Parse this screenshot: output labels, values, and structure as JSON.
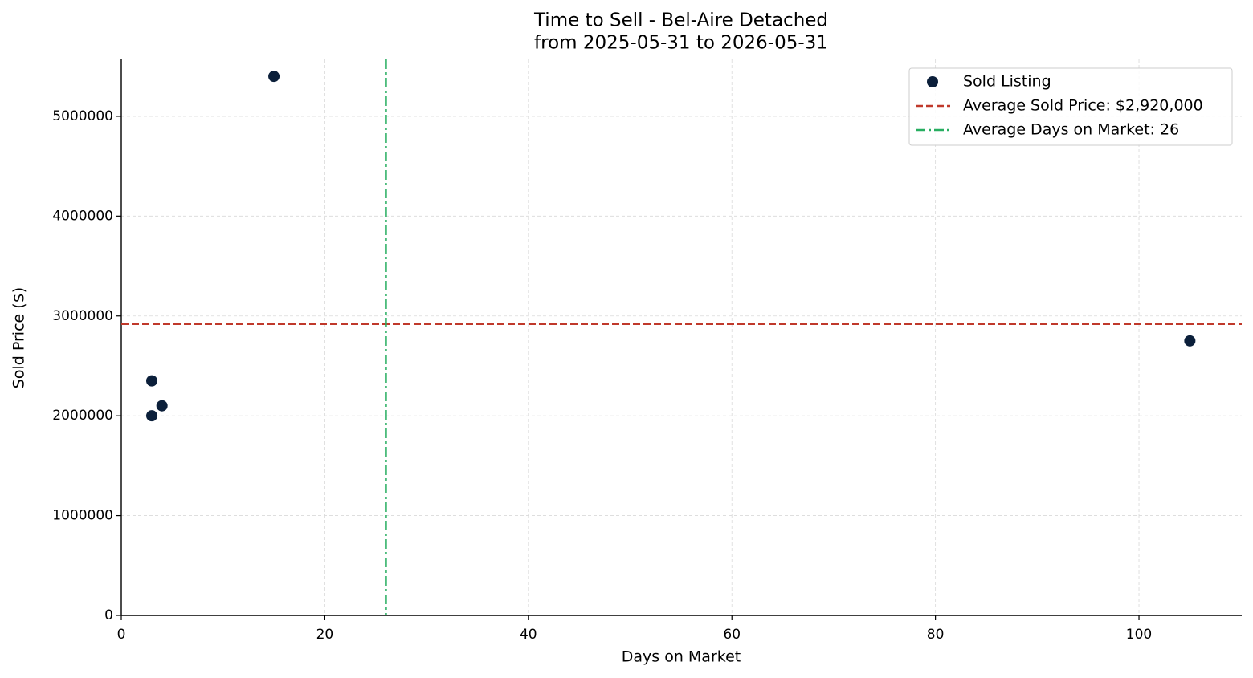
{
  "chart_data": {
    "type": "scatter",
    "title": "Time to Sell - Bel-Aire Detached",
    "subtitle": "from 2025-05-31 to 2026-05-31",
    "x_label": "Days on Market",
    "y_label": "Sold Price ($)",
    "x": [
      3,
      3,
      4,
      15,
      105
    ],
    "series": [
      {
        "name": "Sold Listing",
        "color": "#0b1f3a",
        "values": [
          2000000,
          2350000,
          2100000,
          5400000,
          2750000
        ]
      }
    ],
    "hline": {
      "name": "Average Sold Price: $2,920,000",
      "value": 2920000,
      "color": "#c0392b"
    },
    "vline": {
      "name": "Average Days on Market: 26",
      "value": 26,
      "color": "#27ae60"
    },
    "xlim": [
      0,
      110.1
    ],
    "ylim": [
      0,
      5570000
    ],
    "xticks": [
      0,
      20,
      40,
      60,
      80,
      100
    ],
    "yticks": [
      0,
      1000000,
      2000000,
      3000000,
      4000000,
      5000000
    ],
    "grid": true,
    "legend": "upper right"
  }
}
